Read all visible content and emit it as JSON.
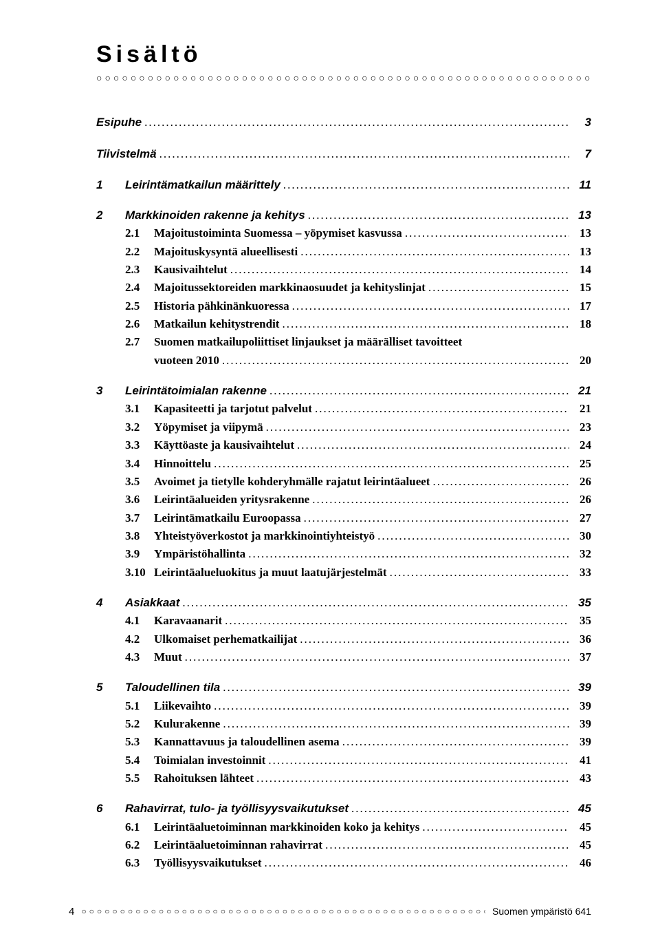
{
  "title": "Sisältö",
  "top_entries": [
    {
      "label": "Esipuhe",
      "page": "3"
    },
    {
      "label": "Tiivistelmä",
      "page": "7"
    }
  ],
  "chapters": [
    {
      "num": "1",
      "label": "Leirintämatkailun määrittely",
      "page": "11",
      "subs": []
    },
    {
      "num": "2",
      "label": "Markkinoiden rakenne ja kehitys",
      "page": "13",
      "subs": [
        {
          "num": "2.1",
          "label": "Majoitustoiminta Suomessa – yöpymiset kasvussa",
          "page": "13"
        },
        {
          "num": "2.2",
          "label": "Majoituskysyntä alueellisesti",
          "page": "13"
        },
        {
          "num": "2.3",
          "label": "Kausivaihtelut",
          "page": "14"
        },
        {
          "num": "2.4",
          "label": "Majoitussektoreiden markkinaosuudet ja kehityslinjat",
          "page": "15"
        },
        {
          "num": "2.5",
          "label": "Historia pähkinänkuoressa",
          "page": "17"
        },
        {
          "num": "2.6",
          "label": "Matkailun kehitystrendit",
          "page": "18"
        },
        {
          "num": "2.7",
          "label": "Suomen matkailupoliittiset linjaukset ja määrälliset tavoitteet",
          "cont": "vuoteen 2010",
          "page": "20"
        }
      ]
    },
    {
      "num": "3",
      "label": "Leirintätoimialan rakenne",
      "page": "21",
      "subs": [
        {
          "num": "3.1",
          "label": "Kapasiteetti ja tarjotut palvelut",
          "page": "21"
        },
        {
          "num": "3.2",
          "label": "Yöpymiset ja viipymä",
          "page": "23"
        },
        {
          "num": "3.3",
          "label": "Käyttöaste ja kausivaihtelut",
          "page": "24"
        },
        {
          "num": "3.4",
          "label": "Hinnoittelu",
          "page": "25"
        },
        {
          "num": "3.5",
          "label": "Avoimet ja tietylle kohderyhmälle rajatut leirintäalueet",
          "page": "26"
        },
        {
          "num": "3.6",
          "label": "Leirintäalueiden yritysrakenne",
          "page": "26"
        },
        {
          "num": "3.7",
          "label": "Leirintämatkailu Euroopassa",
          "page": "27"
        },
        {
          "num": "3.8",
          "label": "Yhteistyöverkostot ja markkinointiyhteistyö",
          "page": "30"
        },
        {
          "num": "3.9",
          "label": "Ympäristöhallinta",
          "page": "32"
        },
        {
          "num": "3.10",
          "label": "Leirintäalueluokitus ja muut laatujärjestelmät",
          "page": "33"
        }
      ]
    },
    {
      "num": "4",
      "label": "Asiakkaat",
      "page": "35",
      "subs": [
        {
          "num": "4.1",
          "label": "Karavaanarit",
          "page": "35"
        },
        {
          "num": "4.2",
          "label": "Ulkomaiset perhematkailijat",
          "page": "36"
        },
        {
          "num": "4.3",
          "label": "Muut",
          "page": "37"
        }
      ]
    },
    {
      "num": "5",
      "label": "Taloudellinen tila",
      "page": "39",
      "subs": [
        {
          "num": "5.1",
          "label": "Liikevaihto",
          "page": "39"
        },
        {
          "num": "5.2",
          "label": "Kulurakenne",
          "page": "39"
        },
        {
          "num": "5.3",
          "label": "Kannattavuus ja taloudellinen asema",
          "page": "39"
        },
        {
          "num": "5.4",
          "label": "Toimialan investoinnit",
          "page": "41"
        },
        {
          "num": "5.5",
          "label": "Rahoituksen lähteet",
          "page": "43"
        }
      ]
    },
    {
      "num": "6",
      "label": "Rahavirrat, tulo- ja työllisyysvaikutukset",
      "page": "45",
      "subs": [
        {
          "num": "6.1",
          "label": "Leirintäaluetoiminnan markkinoiden koko ja kehitys",
          "page": "45"
        },
        {
          "num": "6.2",
          "label": "Leirintäaluetoiminnan rahavirrat",
          "page": "45"
        },
        {
          "num": "6.3",
          "label": "Työllisyysvaikutukset",
          "page": "46"
        }
      ]
    }
  ],
  "footer": {
    "page_number": "4",
    "publication": "Suomen ympäristö 641"
  }
}
